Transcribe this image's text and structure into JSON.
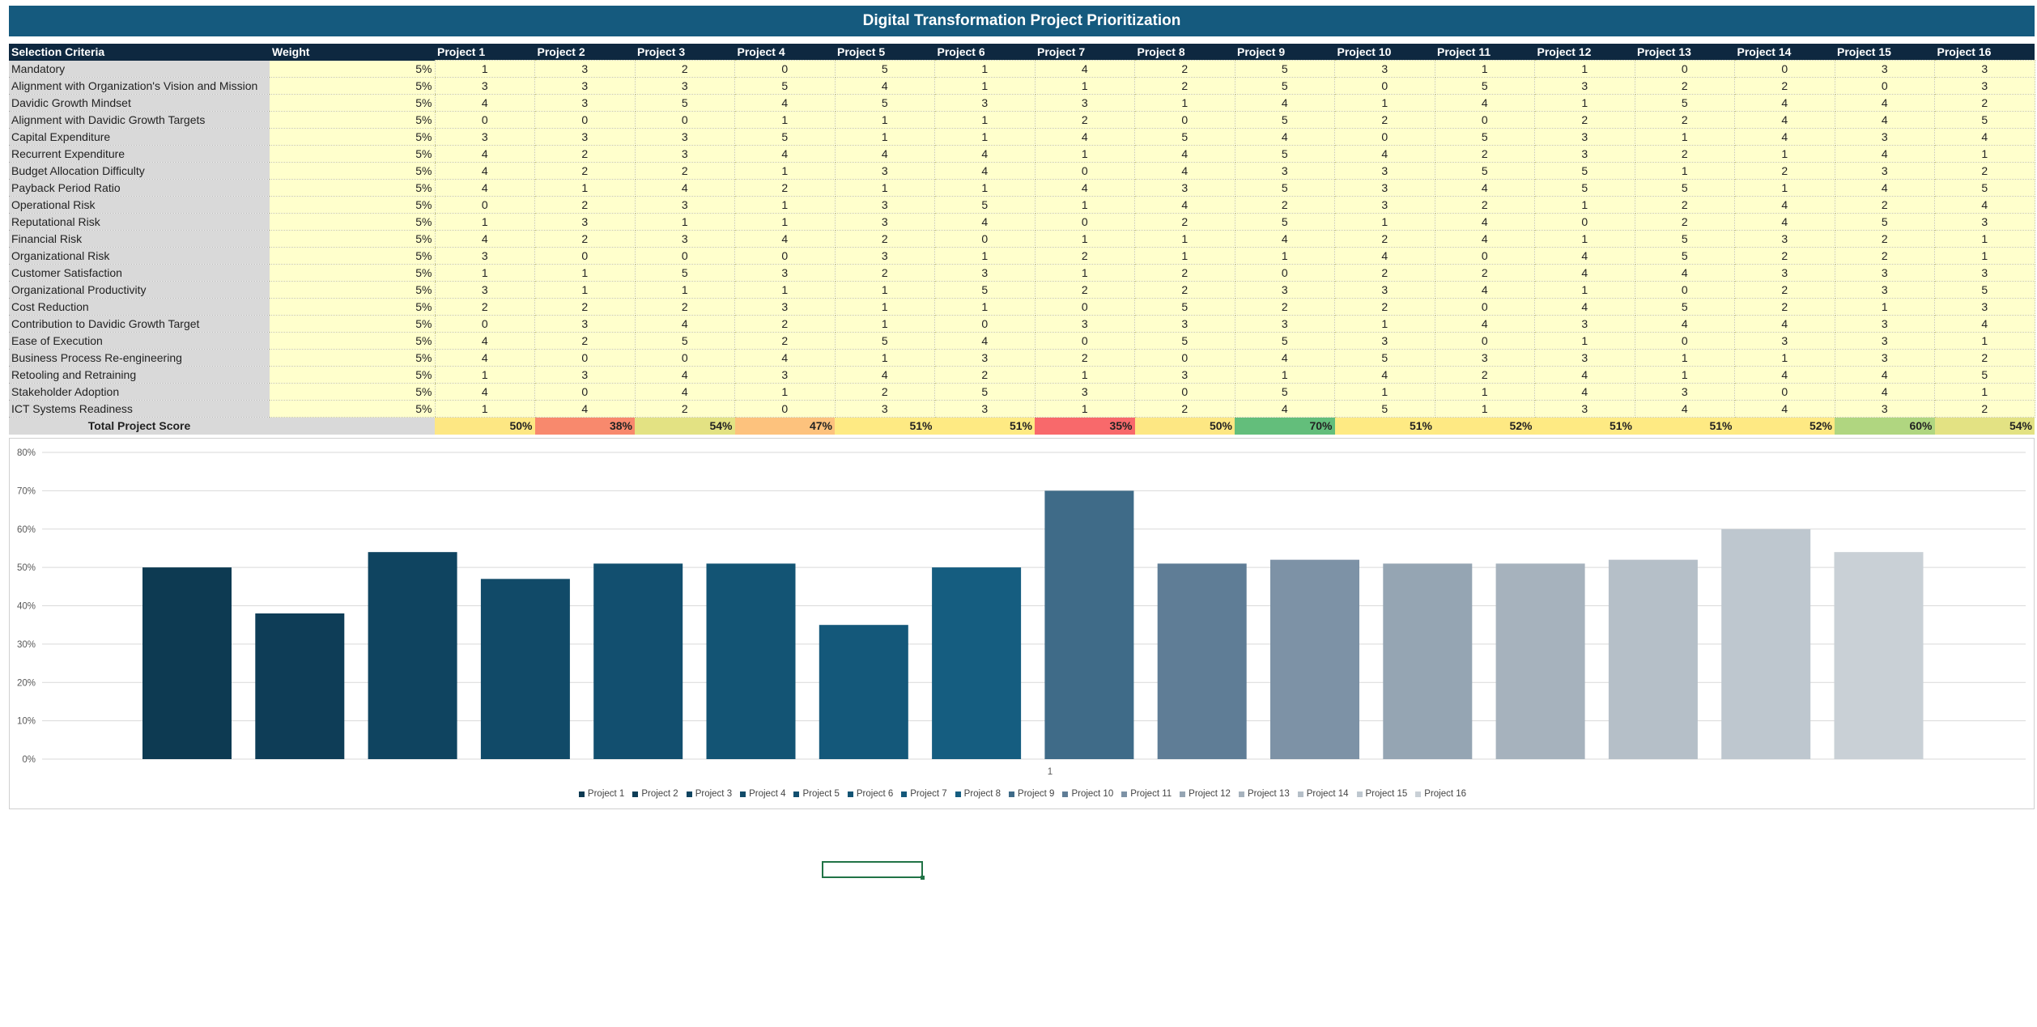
{
  "title": "Digital Transformation Project Prioritization",
  "headers": {
    "criteria": "Selection Criteria",
    "weight": "Weight"
  },
  "projects": [
    "Project 1",
    "Project 2",
    "Project 3",
    "Project 4",
    "Project 5",
    "Project 6",
    "Project 7",
    "Project 8",
    "Project 9",
    "Project 10",
    "Project 11",
    "Project 12",
    "Project 13",
    "Project 14",
    "Project 15",
    "Project 16"
  ],
  "rows": [
    {
      "criterion": "Mandatory",
      "weight": "5%",
      "scores": [
        "1",
        "3",
        "2",
        "0",
        "5",
        "1",
        "4",
        "2",
        "5",
        "3",
        "1",
        "1",
        "0",
        "0",
        "3",
        "3"
      ]
    },
    {
      "criterion": "Alignment with Organization's Vision and Mission",
      "weight": "5%",
      "scores": [
        "3",
        "3",
        "3",
        "5",
        "4",
        "1",
        "1",
        "2",
        "5",
        "0",
        "5",
        "3",
        "2",
        "2",
        "0",
        "3"
      ]
    },
    {
      "criterion": "Davidic Growth Mindset",
      "weight": "5%",
      "scores": [
        "4",
        "3",
        "5",
        "4",
        "5",
        "3",
        "3",
        "1",
        "4",
        "1",
        "4",
        "1",
        "5",
        "4",
        "4",
        "2"
      ]
    },
    {
      "criterion": "Alignment with Davidic Growth Targets",
      "weight": "5%",
      "scores": [
        "0",
        "0",
        "0",
        "1",
        "1",
        "1",
        "2",
        "0",
        "5",
        "2",
        "0",
        "2",
        "2",
        "4",
        "4",
        "5"
      ]
    },
    {
      "criterion": "Capital Expenditure",
      "weight": "5%",
      "scores": [
        "3",
        "3",
        "3",
        "5",
        "1",
        "1",
        "4",
        "5",
        "4",
        "0",
        "5",
        "3",
        "1",
        "4",
        "3",
        "4"
      ]
    },
    {
      "criterion": "Recurrent Expenditure",
      "weight": "5%",
      "scores": [
        "4",
        "2",
        "3",
        "4",
        "4",
        "4",
        "1",
        "4",
        "5",
        "4",
        "2",
        "3",
        "2",
        "1",
        "4",
        "1"
      ]
    },
    {
      "criterion": "Budget Allocation Difficulty",
      "weight": "5%",
      "scores": [
        "4",
        "2",
        "2",
        "1",
        "3",
        "4",
        "0",
        "4",
        "3",
        "3",
        "5",
        "5",
        "1",
        "2",
        "3",
        "2"
      ]
    },
    {
      "criterion": "Payback Period Ratio",
      "weight": "5%",
      "scores": [
        "4",
        "1",
        "4",
        "2",
        "1",
        "1",
        "4",
        "3",
        "5",
        "3",
        "4",
        "5",
        "5",
        "1",
        "4",
        "5"
      ]
    },
    {
      "criterion": "Operational Risk",
      "weight": "5%",
      "scores": [
        "0",
        "2",
        "3",
        "1",
        "3",
        "5",
        "1",
        "4",
        "2",
        "3",
        "2",
        "1",
        "2",
        "4",
        "2",
        "4"
      ]
    },
    {
      "criterion": "Reputational Risk",
      "weight": "5%",
      "scores": [
        "1",
        "3",
        "1",
        "1",
        "3",
        "4",
        "0",
        "2",
        "5",
        "1",
        "4",
        "0",
        "2",
        "4",
        "5",
        "3"
      ]
    },
    {
      "criterion": "Financial Risk",
      "weight": "5%",
      "scores": [
        "4",
        "2",
        "3",
        "4",
        "2",
        "0",
        "1",
        "1",
        "4",
        "2",
        "4",
        "1",
        "5",
        "3",
        "2",
        "1"
      ]
    },
    {
      "criterion": "Organizational Risk",
      "weight": "5%",
      "scores": [
        "3",
        "0",
        "0",
        "0",
        "3",
        "1",
        "2",
        "1",
        "1",
        "4",
        "0",
        "4",
        "5",
        "2",
        "2",
        "1"
      ]
    },
    {
      "criterion": "Customer Satisfaction",
      "weight": "5%",
      "scores": [
        "1",
        "1",
        "5",
        "3",
        "2",
        "3",
        "1",
        "2",
        "0",
        "2",
        "2",
        "4",
        "4",
        "3",
        "3",
        "3"
      ]
    },
    {
      "criterion": "Organizational Productivity",
      "weight": "5%",
      "scores": [
        "3",
        "1",
        "1",
        "1",
        "1",
        "5",
        "2",
        "2",
        "3",
        "3",
        "4",
        "1",
        "0",
        "2",
        "3",
        "5"
      ]
    },
    {
      "criterion": "Cost Reduction",
      "weight": "5%",
      "scores": [
        "2",
        "2",
        "2",
        "3",
        "1",
        "1",
        "0",
        "5",
        "2",
        "2",
        "0",
        "4",
        "5",
        "2",
        "1",
        "3"
      ]
    },
    {
      "criterion": "Contribution to Davidic Growth Target",
      "weight": "5%",
      "scores": [
        "0",
        "3",
        "4",
        "2",
        "1",
        "0",
        "3",
        "3",
        "3",
        "1",
        "4",
        "3",
        "4",
        "4",
        "3",
        "4"
      ]
    },
    {
      "criterion": "Ease of Execution",
      "weight": "5%",
      "scores": [
        "4",
        "2",
        "5",
        "2",
        "5",
        "4",
        "0",
        "5",
        "5",
        "3",
        "0",
        "1",
        "0",
        "3",
        "3",
        "1"
      ]
    },
    {
      "criterion": "Business Process Re-engineering",
      "weight": "5%",
      "scores": [
        "4",
        "0",
        "0",
        "4",
        "1",
        "3",
        "2",
        "0",
        "4",
        "5",
        "3",
        "3",
        "1",
        "1",
        "3",
        "2"
      ]
    },
    {
      "criterion": "Retooling and Retraining",
      "weight": "5%",
      "scores": [
        "1",
        "3",
        "4",
        "3",
        "4",
        "2",
        "1",
        "3",
        "1",
        "4",
        "2",
        "4",
        "1",
        "4",
        "4",
        "5"
      ]
    },
    {
      "criterion": "Stakeholder Adoption",
      "weight": "5%",
      "scores": [
        "4",
        "0",
        "4",
        "1",
        "2",
        "5",
        "3",
        "0",
        "5",
        "1",
        "1",
        "4",
        "3",
        "0",
        "4",
        "1"
      ]
    },
    {
      "criterion": "ICT Systems Readiness",
      "weight": "5%",
      "scores": [
        "1",
        "4",
        "2",
        "0",
        "3",
        "3",
        "1",
        "2",
        "4",
        "5",
        "1",
        "3",
        "4",
        "4",
        "3",
        "2"
      ]
    }
  ],
  "total": {
    "label": "Total Project Score",
    "scores": [
      "50%",
      "38%",
      "54%",
      "47%",
      "51%",
      "51%",
      "35%",
      "50%",
      "70%",
      "51%",
      "52%",
      "51%",
      "51%",
      "52%",
      "60%",
      "54%"
    ],
    "colors": [
      "#fde783",
      "#f8896d",
      "#e3e283",
      "#fdc27d",
      "#feea83",
      "#feea83",
      "#f8696b",
      "#fde783",
      "#63be7b",
      "#feea83",
      "#fee983",
      "#feea83",
      "#feea83",
      "#fee983",
      "#b0d680",
      "#e3e283"
    ]
  },
  "chart_data": {
    "type": "bar",
    "categories": [
      "1"
    ],
    "ylim": [
      0,
      80
    ],
    "yticks": [
      "0%",
      "10%",
      "20%",
      "30%",
      "40%",
      "50%",
      "60%",
      "70%",
      "80%"
    ],
    "grid": true,
    "legend_position": "bottom",
    "series": [
      {
        "name": "Project 1",
        "value": 50,
        "color": "#0d3a52"
      },
      {
        "name": "Project 2",
        "value": 38,
        "color": "#0e3d57"
      },
      {
        "name": "Project 3",
        "value": 54,
        "color": "#0f4460"
      },
      {
        "name": "Project 4",
        "value": 47,
        "color": "#114a68"
      },
      {
        "name": "Project 5",
        "value": 51,
        "color": "#124f6f"
      },
      {
        "name": "Project 6",
        "value": 51,
        "color": "#135474"
      },
      {
        "name": "Project 7",
        "value": 35,
        "color": "#14587a"
      },
      {
        "name": "Project 8",
        "value": 50,
        "color": "#155d80"
      },
      {
        "name": "Project 9",
        "value": 70,
        "color": "#3f6b88"
      },
      {
        "name": "Project 10",
        "value": 51,
        "color": "#5f7d96"
      },
      {
        "name": "Project 11",
        "value": 52,
        "color": "#7d92a6"
      },
      {
        "name": "Project 12",
        "value": 51,
        "color": "#95a5b3"
      },
      {
        "name": "Project 13",
        "value": 51,
        "color": "#a6b2bd"
      },
      {
        "name": "Project 14",
        "value": 52,
        "color": "#b5bfc8"
      },
      {
        "name": "Project 15",
        "value": 60,
        "color": "#bec7cf"
      },
      {
        "name": "Project 16",
        "value": 54,
        "color": "#c9d0d6"
      }
    ]
  }
}
